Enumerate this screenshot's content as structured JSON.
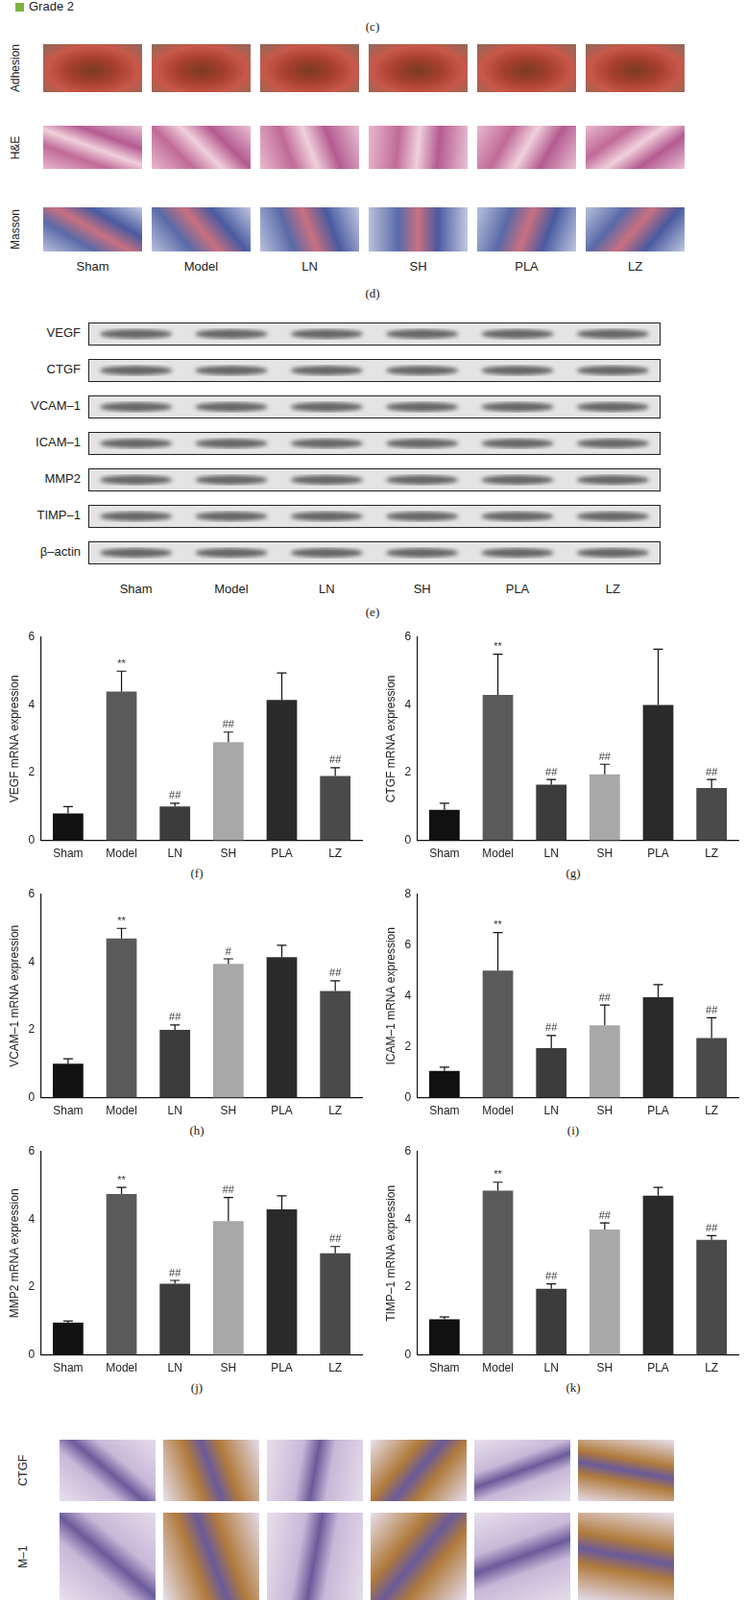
{
  "figure": {
    "top": {
      "legend_item": "Grade 2",
      "legend_color": "#7cb342",
      "panel_label": "(c)"
    },
    "histology": {
      "rows": [
        "Adhesion",
        "H&E",
        "Masson"
      ],
      "groups": [
        "Sham",
        "Model",
        "LN",
        "SH",
        "PLA",
        "LZ"
      ],
      "panel_label": "(d)"
    },
    "western_blot": {
      "proteins": [
        "VEGF",
        "CTGF",
        "VCAM–1",
        "ICAM–1",
        "MMP2",
        "TIMP–1",
        "β–actin"
      ],
      "groups": [
        "Sham",
        "Model",
        "LN",
        "SH",
        "PLA",
        "LZ"
      ],
      "panel_label": "(e)"
    },
    "ihc": {
      "rows": [
        "CTGF",
        "M–1"
      ]
    }
  },
  "chart_data": [
    {
      "type": "bar",
      "panel_label": "(f)",
      "y_label": "VEGF mRNA expression",
      "categories": [
        "Sham",
        "Model",
        "LN",
        "SH",
        "PLA",
        "LZ"
      ],
      "values": [
        0.8,
        4.4,
        1.0,
        2.9,
        4.15,
        1.9
      ],
      "errors": [
        0.2,
        0.6,
        0.1,
        0.3,
        0.8,
        0.25
      ],
      "significance": [
        null,
        "**",
        "##",
        "##",
        null,
        "##"
      ],
      "colors": [
        "#111111",
        "#5a5a5a",
        "#3c3c3c",
        "#a8a8a8",
        "#2a2a2a",
        "#4a4a4a"
      ],
      "ylim": [
        0,
        6
      ],
      "yticks": [
        0,
        2,
        4,
        6
      ],
      "grid": false
    },
    {
      "type": "bar",
      "panel_label": "(g)",
      "y_label": "CTGF mRNA expression",
      "categories": [
        "Sham",
        "Model",
        "LN",
        "SH",
        "PLA",
        "LZ"
      ],
      "values": [
        0.9,
        4.3,
        1.65,
        1.95,
        4.0,
        1.55
      ],
      "errors": [
        0.2,
        1.2,
        0.15,
        0.3,
        1.65,
        0.25
      ],
      "significance": [
        null,
        "**",
        "##",
        "##",
        null,
        "##"
      ],
      "colors": [
        "#111111",
        "#5a5a5a",
        "#3c3c3c",
        "#a8a8a8",
        "#2a2a2a",
        "#4a4a4a"
      ],
      "ylim": [
        0,
        6
      ],
      "yticks": [
        0,
        2,
        4,
        6
      ],
      "grid": false
    },
    {
      "type": "bar",
      "panel_label": "(h)",
      "y_label": "VCAM–1 mRNA expression",
      "categories": [
        "Sham",
        "Model",
        "LN",
        "SH",
        "PLA",
        "LZ"
      ],
      "values": [
        1.0,
        4.7,
        2.0,
        3.95,
        4.15,
        3.15
      ],
      "errors": [
        0.15,
        0.3,
        0.15,
        0.15,
        0.35,
        0.3
      ],
      "significance": [
        null,
        "**",
        "##",
        "#",
        null,
        "##"
      ],
      "colors": [
        "#111111",
        "#5a5a5a",
        "#3c3c3c",
        "#a8a8a8",
        "#2a2a2a",
        "#4a4a4a"
      ],
      "ylim": [
        0,
        6
      ],
      "yticks": [
        0,
        2,
        4,
        6
      ],
      "grid": false
    },
    {
      "type": "bar",
      "panel_label": "(i)",
      "y_label": "ICAM–1 mRNA expression",
      "categories": [
        "Sham",
        "Model",
        "LN",
        "SH",
        "PLA",
        "LZ"
      ],
      "values": [
        1.05,
        5.0,
        1.95,
        2.85,
        3.95,
        2.35
      ],
      "errors": [
        0.15,
        1.5,
        0.5,
        0.8,
        0.5,
        0.8
      ],
      "significance": [
        null,
        "**",
        "##",
        "##",
        null,
        "##"
      ],
      "colors": [
        "#111111",
        "#5a5a5a",
        "#3c3c3c",
        "#a8a8a8",
        "#2a2a2a",
        "#4a4a4a"
      ],
      "ylim": [
        0,
        8
      ],
      "yticks": [
        0,
        2,
        4,
        6,
        8
      ],
      "grid": false
    },
    {
      "type": "bar",
      "panel_label": "(j)",
      "y_label": "MMP2 mRNA expression",
      "categories": [
        "Sham",
        "Model",
        "LN",
        "SH",
        "PLA",
        "LZ"
      ],
      "values": [
        0.95,
        4.75,
        2.1,
        3.95,
        4.3,
        3.0
      ],
      "errors": [
        0.05,
        0.2,
        0.1,
        0.7,
        0.4,
        0.2
      ],
      "significance": [
        null,
        "**",
        "##",
        "##",
        null,
        "##"
      ],
      "colors": [
        "#111111",
        "#5a5a5a",
        "#3c3c3c",
        "#a8a8a8",
        "#2a2a2a",
        "#4a4a4a"
      ],
      "ylim": [
        0,
        6
      ],
      "yticks": [
        0,
        2,
        4,
        6
      ],
      "grid": false
    },
    {
      "type": "bar",
      "panel_label": "(k)",
      "y_label": "TIMP–1 mRNA expression",
      "categories": [
        "Sham",
        "Model",
        "LN",
        "SH",
        "PLA",
        "LZ"
      ],
      "values": [
        1.05,
        4.85,
        1.95,
        3.7,
        4.7,
        3.4
      ],
      "errors": [
        0.07,
        0.25,
        0.15,
        0.2,
        0.25,
        0.12
      ],
      "significance": [
        null,
        "**",
        "##",
        "##",
        null,
        "##"
      ],
      "colors": [
        "#111111",
        "#5a5a5a",
        "#3c3c3c",
        "#a8a8a8",
        "#2a2a2a",
        "#4a4a4a"
      ],
      "ylim": [
        0,
        6
      ],
      "yticks": [
        0,
        2,
        4,
        6
      ],
      "grid": false
    }
  ]
}
